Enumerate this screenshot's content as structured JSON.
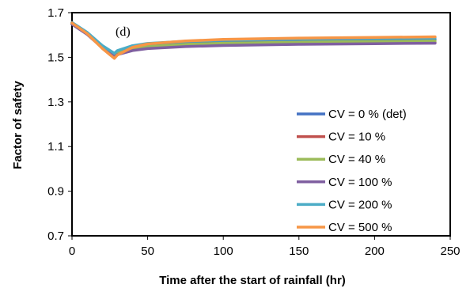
{
  "chart_data": {
    "type": "line",
    "title": "",
    "annotation": "(d)",
    "xlabel": "Time after the start of rainfall (hr)",
    "ylabel": "Factor of safety",
    "xlim": [
      0,
      250
    ],
    "ylim": [
      0.7,
      1.7
    ],
    "xticks": [
      0,
      50,
      100,
      150,
      200,
      250
    ],
    "yticks": [
      0.7,
      0.9,
      1.1,
      1.3,
      1.5,
      1.7
    ],
    "ytick_labels": [
      "0.7",
      "0.9",
      "1.1",
      "1.3",
      "1.5",
      "1.7"
    ],
    "grid": false,
    "legend_position": "bottom-right",
    "series": [
      {
        "name": "CV = 0 % (det)",
        "color": "#4472C4",
        "x": [
          0,
          10,
          20,
          28,
          30,
          40,
          50,
          75,
          100,
          150,
          200,
          240
        ],
        "y": [
          1.655,
          1.61,
          1.55,
          1.515,
          1.525,
          1.545,
          1.555,
          1.565,
          1.57,
          1.575,
          1.578,
          1.58
        ]
      },
      {
        "name": "CV = 10 %",
        "color": "#C0504D",
        "x": [
          0,
          10,
          20,
          28,
          30,
          40,
          50,
          75,
          100,
          150,
          200,
          240
        ],
        "y": [
          1.65,
          1.605,
          1.545,
          1.505,
          1.515,
          1.533,
          1.542,
          1.552,
          1.557,
          1.562,
          1.565,
          1.567
        ]
      },
      {
        "name": "CV = 40 %",
        "color": "#9BBB59",
        "x": [
          0,
          10,
          20,
          28,
          30,
          40,
          50,
          75,
          100,
          150,
          200,
          240
        ],
        "y": [
          1.652,
          1.607,
          1.547,
          1.508,
          1.518,
          1.538,
          1.548,
          1.558,
          1.563,
          1.568,
          1.571,
          1.573
        ]
      },
      {
        "name": "CV = 100 %",
        "color": "#7F5FA0",
        "x": [
          0,
          10,
          20,
          28,
          30,
          40,
          50,
          75,
          100,
          150,
          200,
          240
        ],
        "y": [
          1.648,
          1.603,
          1.543,
          1.502,
          1.512,
          1.53,
          1.539,
          1.548,
          1.553,
          1.558,
          1.561,
          1.563
        ]
      },
      {
        "name": "CV = 200 %",
        "color": "#4BACC6",
        "x": [
          0,
          10,
          20,
          28,
          30,
          40,
          50,
          75,
          100,
          150,
          200,
          240
        ],
        "y": [
          1.656,
          1.612,
          1.553,
          1.518,
          1.53,
          1.552,
          1.562,
          1.572,
          1.577,
          1.582,
          1.585,
          1.587
        ]
      },
      {
        "name": "CV = 500 %",
        "color": "#F79646",
        "x": [
          0,
          10,
          20,
          28,
          30,
          40,
          50,
          75,
          100,
          150,
          200,
          240
        ],
        "y": [
          1.654,
          1.606,
          1.54,
          1.495,
          1.51,
          1.545,
          1.56,
          1.573,
          1.58,
          1.586,
          1.589,
          1.592
        ]
      }
    ]
  }
}
